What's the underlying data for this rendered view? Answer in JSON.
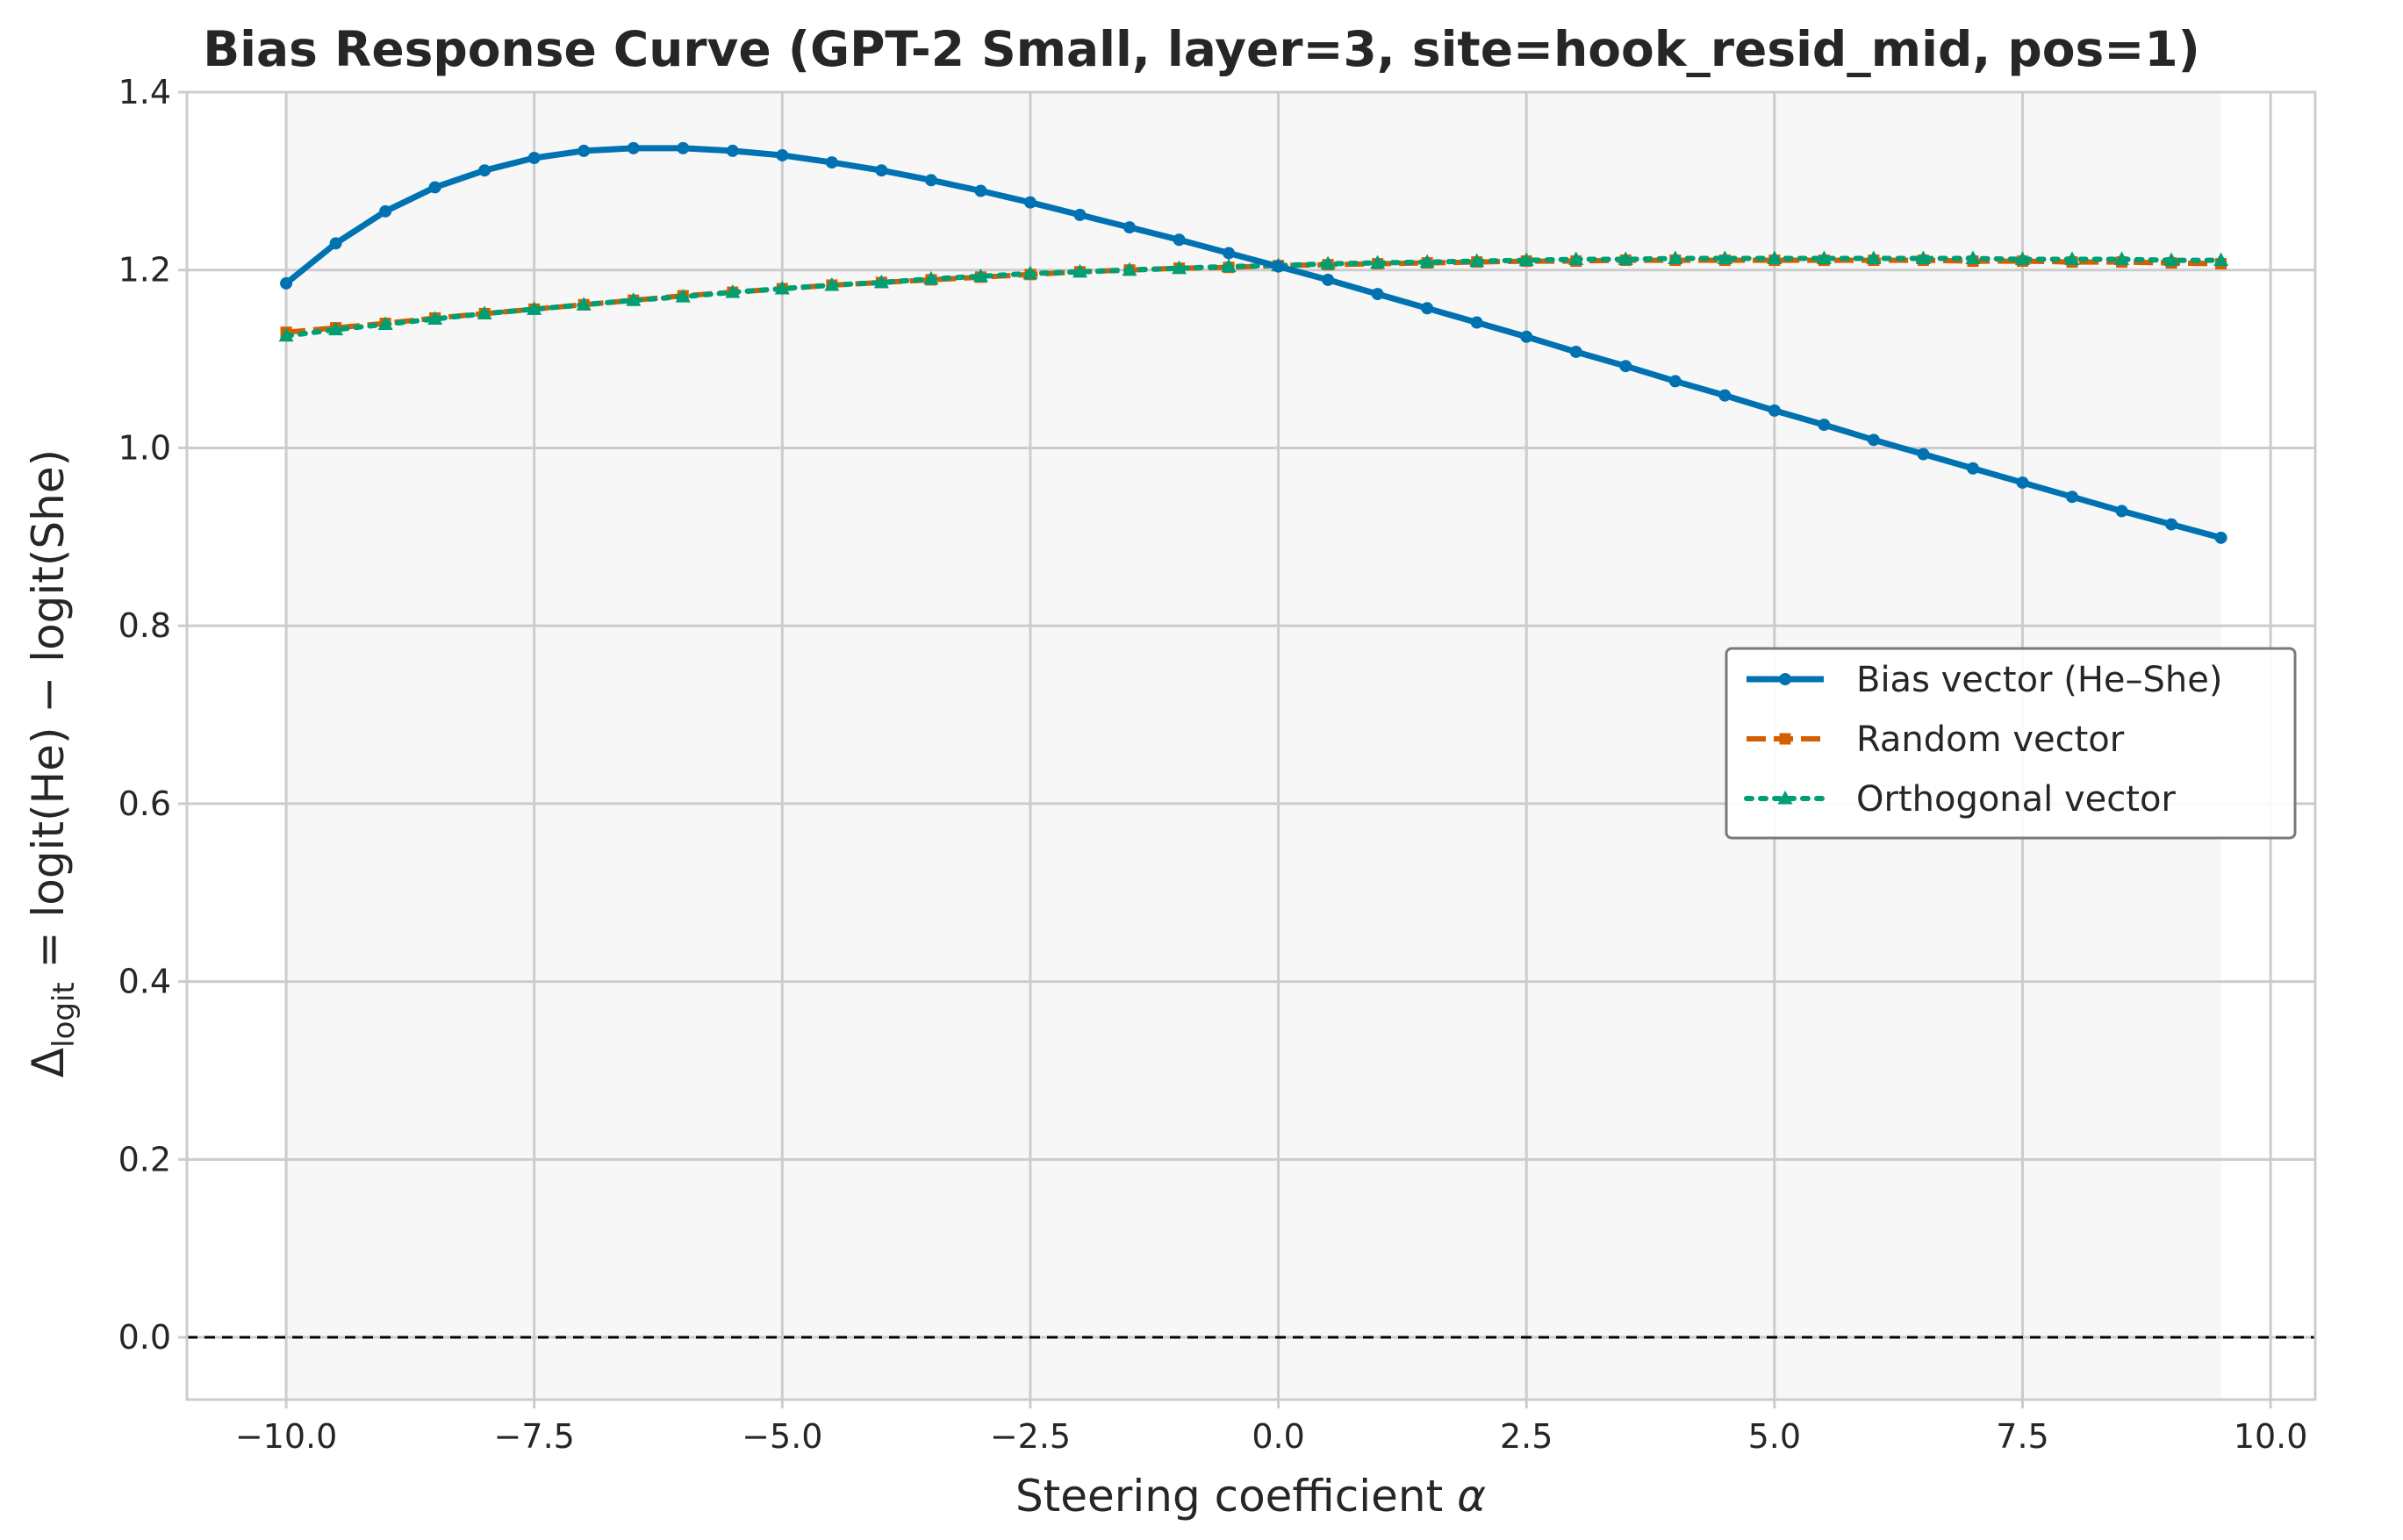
{
  "chart_data": {
    "type": "line",
    "title": "Bias Response Curve (GPT-2 Small, layer=3, site=hook_resid_mid, pos=1)",
    "xlabel_main": "Steering coefficient ",
    "xlabel_symbol": "α",
    "ylabel_delta": "Δ",
    "ylabel_sub": "logit",
    "ylabel_rest": " = logit(He) − logit(She)",
    "xlim": [
      -11.0,
      10.45
    ],
    "ylim": [
      -0.07,
      1.4
    ],
    "xticks": [
      -10.0,
      -7.5,
      -5.0,
      -2.5,
      0.0,
      2.5,
      5.0,
      7.5,
      10.0
    ],
    "xtick_labels": [
      "−10.0",
      "−7.5",
      "−5.0",
      "−2.5",
      "0.0",
      "2.5",
      "5.0",
      "7.5",
      "10.0"
    ],
    "yticks": [
      0.0,
      0.2,
      0.4,
      0.6,
      0.8,
      1.0,
      1.2,
      1.4
    ],
    "ytick_labels": [
      "0.0",
      "0.2",
      "0.4",
      "0.6",
      "0.8",
      "1.0",
      "1.2",
      "1.4"
    ],
    "grid": true,
    "reference_line_y": 0.0,
    "legend_position": "center-right",
    "x": [
      -10.0,
      -9.5,
      -9.0,
      -8.5,
      -8.0,
      -7.5,
      -7.0,
      -6.5,
      -6.0,
      -5.5,
      -5.0,
      -4.5,
      -4.0,
      -3.5,
      -3.0,
      -2.5,
      -2.0,
      -1.5,
      -1.0,
      -0.5,
      0.0,
      0.5,
      1.0,
      1.5,
      2.0,
      2.5,
      3.0,
      3.5,
      4.0,
      4.5,
      5.0,
      5.5,
      6.0,
      6.5,
      7.0,
      7.5,
      8.0,
      8.5,
      9.0,
      9.5
    ],
    "series": [
      {
        "name": "Bias vector (He–She)",
        "color": "#0072b2",
        "style": "solid",
        "marker": "circle",
        "values": [
          1.185,
          1.23,
          1.266,
          1.293,
          1.312,
          1.326,
          1.334,
          1.337,
          1.337,
          1.334,
          1.329,
          1.321,
          1.312,
          1.301,
          1.289,
          1.276,
          1.262,
          1.248,
          1.234,
          1.219,
          1.204,
          1.189,
          1.173,
          1.157,
          1.141,
          1.125,
          1.108,
          1.092,
          1.075,
          1.059,
          1.042,
          1.026,
          1.009,
          0.993,
          0.977,
          0.961,
          0.945,
          0.929,
          0.914,
          0.899
        ]
      },
      {
        "name": "Random vector",
        "color": "#d55e00",
        "style": "dashed",
        "marker": "square",
        "values": [
          1.13,
          1.135,
          1.14,
          1.146,
          1.151,
          1.156,
          1.161,
          1.166,
          1.171,
          1.175,
          1.179,
          1.183,
          1.186,
          1.189,
          1.192,
          1.195,
          1.198,
          1.2,
          1.202,
          1.203,
          1.205,
          1.206,
          1.207,
          1.208,
          1.209,
          1.21,
          1.21,
          1.211,
          1.211,
          1.211,
          1.211,
          1.211,
          1.211,
          1.211,
          1.21,
          1.21,
          1.209,
          1.209,
          1.208,
          1.207
        ]
      },
      {
        "name": "Orthogonal vector",
        "color": "#009e73",
        "style": "dotted",
        "marker": "triangle",
        "values": [
          1.126,
          1.133,
          1.139,
          1.145,
          1.151,
          1.156,
          1.161,
          1.166,
          1.17,
          1.175,
          1.179,
          1.183,
          1.186,
          1.19,
          1.193,
          1.196,
          1.198,
          1.2,
          1.202,
          1.204,
          1.205,
          1.207,
          1.208,
          1.209,
          1.21,
          1.211,
          1.212,
          1.212,
          1.213,
          1.213,
          1.213,
          1.213,
          1.213,
          1.213,
          1.213,
          1.212,
          1.212,
          1.212,
          1.211,
          1.211
        ]
      }
    ]
  }
}
